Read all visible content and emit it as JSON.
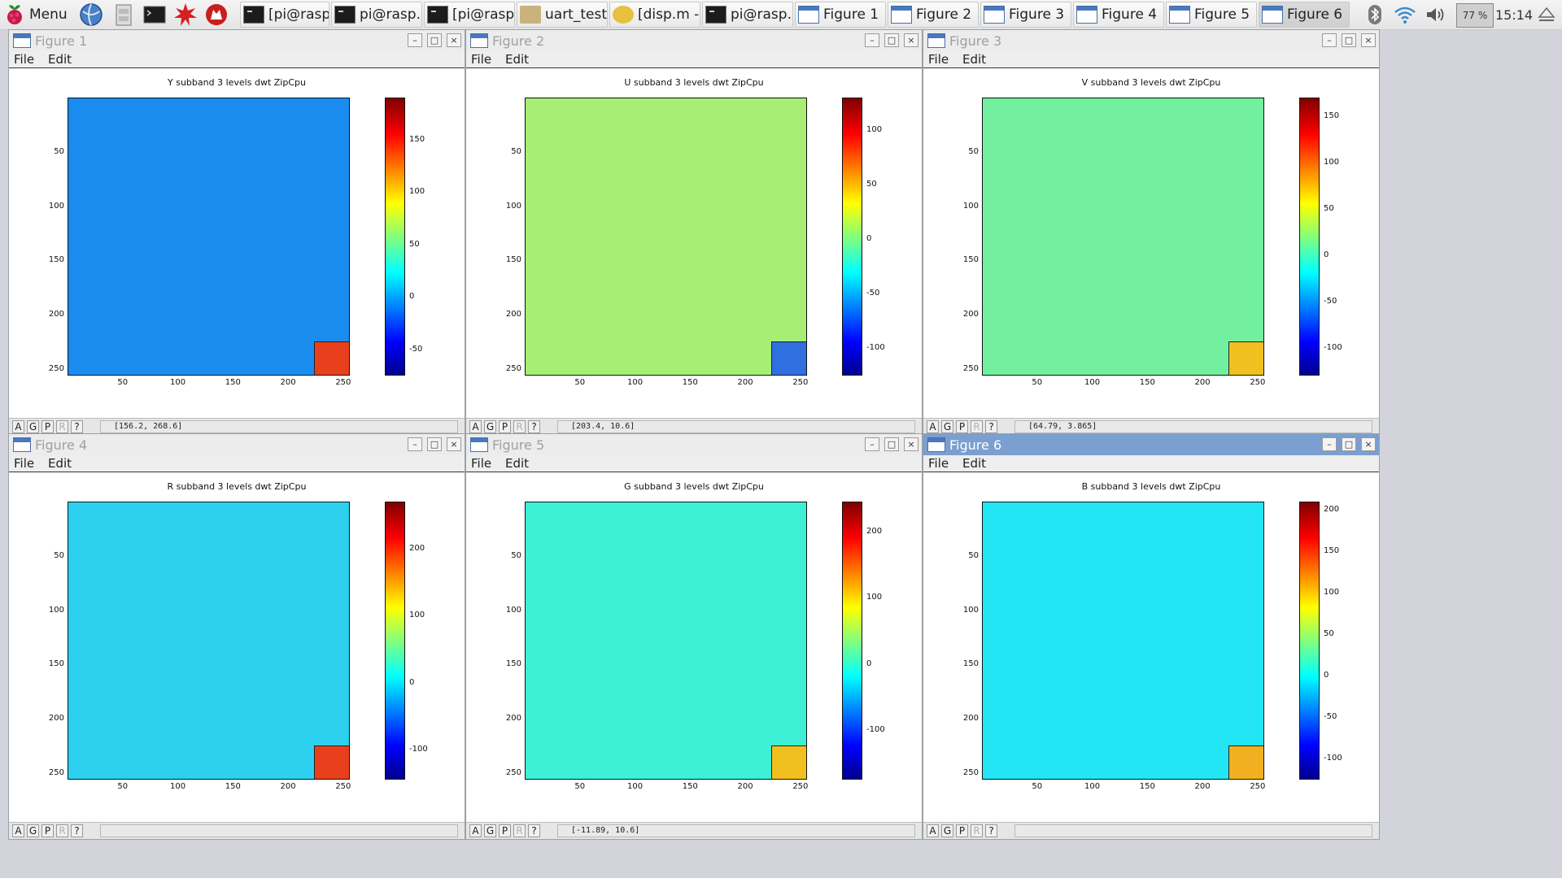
{
  "taskbar": {
    "menu_label": "Menu",
    "tasks": [
      {
        "label": "[pi@rasp...",
        "icon": "terminal-icon"
      },
      {
        "label": "pi@rasp...",
        "icon": "terminal-icon"
      },
      {
        "label": "[pi@rasp...",
        "icon": "terminal-icon"
      },
      {
        "label": "uart_test...",
        "icon": "folder-icon"
      },
      {
        "label": "[disp.m - ...",
        "icon": "editor-icon"
      },
      {
        "label": "pi@rasp...",
        "icon": "terminal-icon"
      },
      {
        "label": "Figure 1",
        "icon": "window-icon"
      },
      {
        "label": "Figure 2",
        "icon": "window-icon"
      },
      {
        "label": "Figure 3",
        "icon": "window-icon"
      },
      {
        "label": "Figure 4",
        "icon": "window-icon"
      },
      {
        "label": "Figure 5",
        "icon": "window-icon"
      },
      {
        "label": "Figure 6",
        "icon": "window-icon"
      }
    ],
    "cpu": "77 %",
    "clock": "15:14"
  },
  "figure_menu": {
    "file": "File",
    "edit": "Edit"
  },
  "toolbar_buttons": {
    "a": "A",
    "g": "G",
    "p": "P",
    "r": "R",
    "help": "?"
  },
  "figures": [
    {
      "window_title": "Figure 1",
      "coords": "[156.2,  268.6]",
      "active": false
    },
    {
      "window_title": "Figure 2",
      "coords": "[203.4,  10.6]",
      "active": false
    },
    {
      "window_title": "Figure 3",
      "coords": "[64.79,  3.865]",
      "active": false
    },
    {
      "window_title": "Figure 4",
      "coords": "",
      "active": false
    },
    {
      "window_title": "Figure 5",
      "coords": "[-11.89,  10.6]",
      "active": false
    },
    {
      "window_title": "Figure 6",
      "coords": "",
      "active": true
    }
  ],
  "chart_data": [
    {
      "type": "heatmap",
      "title": "Y subband 3 levels dwt ZipCpu",
      "x_ticks": [
        50,
        100,
        150,
        200,
        250
      ],
      "y_ticks": [
        50,
        100,
        150,
        200,
        250
      ],
      "colorbar_ticks": [
        -50,
        0,
        50,
        100,
        150
      ],
      "colorbar_range": [
        -75,
        190
      ],
      "colormap": "jet",
      "dominant_color": "#1a8cf0",
      "inset_color": "#e8401c"
    },
    {
      "type": "heatmap",
      "title": "U subband 3 levels dwt ZipCpu",
      "x_ticks": [
        50,
        100,
        150,
        200,
        250
      ],
      "y_ticks": [
        50,
        100,
        150,
        200,
        250
      ],
      "colorbar_ticks": [
        -100,
        -50,
        0,
        50,
        100
      ],
      "colorbar_range": [
        -125,
        130
      ],
      "colormap": "jet",
      "dominant_color": "#a6ee74",
      "inset_color": "#2f6fe0"
    },
    {
      "type": "heatmap",
      "title": "V subband 3 levels dwt ZipCpu",
      "x_ticks": [
        50,
        100,
        150,
        200,
        250
      ],
      "y_ticks": [
        50,
        100,
        150,
        200,
        250
      ],
      "colorbar_ticks": [
        -100,
        -50,
        0,
        50,
        100,
        150
      ],
      "colorbar_range": [
        -130,
        170
      ],
      "colormap": "jet",
      "dominant_color": "#72f0a0",
      "inset_color": "#f0c020"
    },
    {
      "type": "heatmap",
      "title": "R subband 3 levels dwt ZipCpu",
      "x_ticks": [
        50,
        100,
        150,
        200,
        250
      ],
      "y_ticks": [
        50,
        100,
        150,
        200,
        250
      ],
      "colorbar_ticks": [
        -100,
        0,
        100,
        200
      ],
      "colorbar_range": [
        -145,
        270
      ],
      "colormap": "jet",
      "dominant_color": "#2ed0f0",
      "inset_color": "#e8401c"
    },
    {
      "type": "heatmap",
      "title": "G subband 3 levels dwt ZipCpu",
      "x_ticks": [
        50,
        100,
        150,
        200,
        250
      ],
      "y_ticks": [
        50,
        100,
        150,
        200,
        250
      ],
      "colorbar_ticks": [
        -100,
        0,
        100,
        200
      ],
      "colorbar_range": [
        -175,
        245
      ],
      "colormap": "jet",
      "dominant_color": "#3ef0d6",
      "inset_color": "#f0c020"
    },
    {
      "type": "heatmap",
      "title": "B subband 3 levels dwt ZipCpu",
      "x_ticks": [
        50,
        100,
        150,
        200,
        250
      ],
      "y_ticks": [
        50,
        100,
        150,
        200,
        250
      ],
      "colorbar_ticks": [
        -100,
        -50,
        0,
        50,
        100,
        150,
        200
      ],
      "colorbar_range": [
        -125,
        210
      ],
      "colormap": "jet",
      "dominant_color": "#22e6f6",
      "inset_color": "#f0b020"
    }
  ]
}
